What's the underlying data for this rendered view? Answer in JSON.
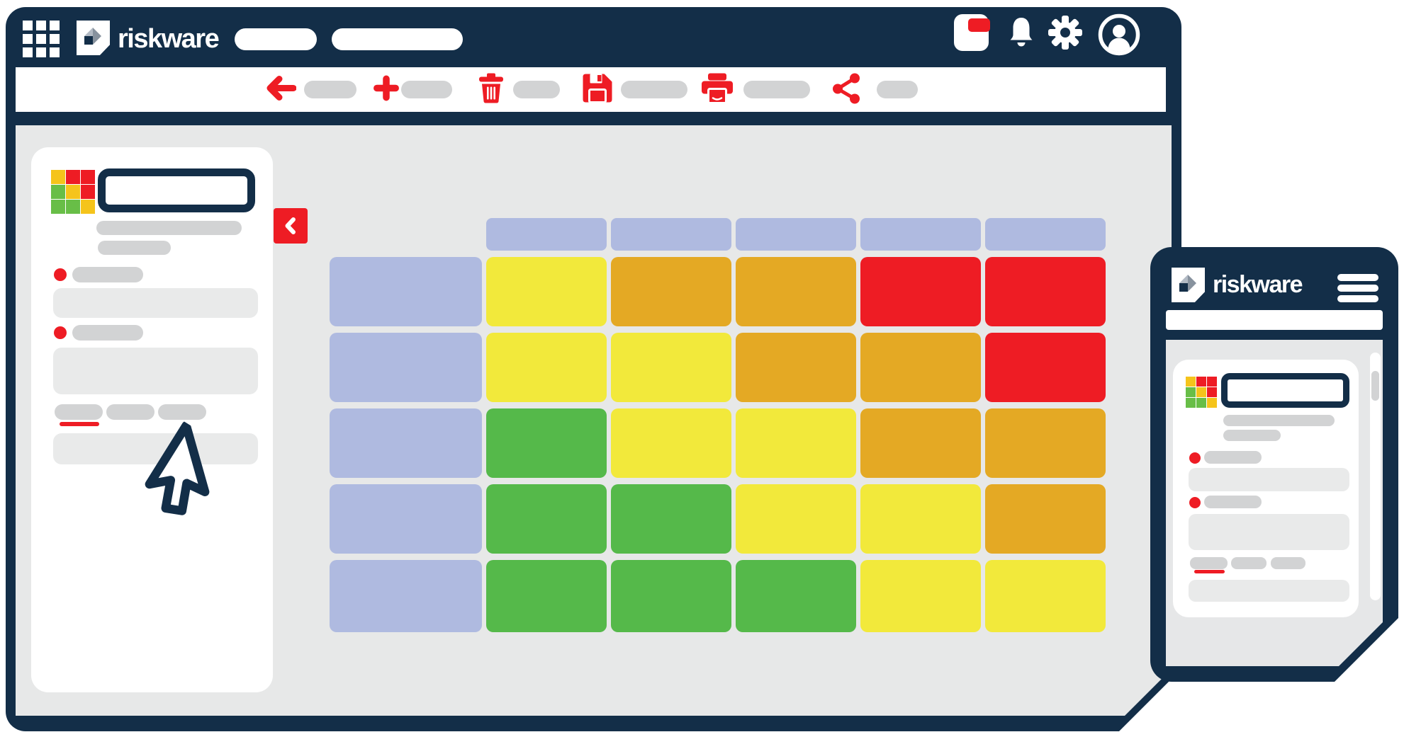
{
  "brand": {
    "name": "riskware"
  },
  "colors": {
    "navy": "#132E48",
    "red": "#EE1C24",
    "content_bg": "#E7E8E8",
    "phone_screen_bg": "#E6E7E8",
    "pill_gray": "#D2D3D4",
    "box_gray": "#E9EAEA",
    "lavender": "#AFBAE0"
  },
  "topbar": {
    "nav_placeholders": 2,
    "icons": [
      "app-grid",
      "notification-card",
      "bell",
      "gear",
      "avatar"
    ],
    "notification_badge_color": "#EE1C24"
  },
  "toolbar": {
    "actions": [
      "back",
      "add",
      "delete",
      "save",
      "print",
      "share"
    ]
  },
  "sidebar": {
    "required_fields": 2,
    "tabs": {
      "count": 3,
      "active_index": 0,
      "active_underline_color": "#EE1C24"
    }
  },
  "logo_grid": {
    "colors": {
      "y": "#F5C41B",
      "r": "#EE1C24",
      "g": "#68BE47"
    },
    "rows": [
      [
        "y",
        "r",
        "r"
      ],
      [
        "g",
        "y",
        "r"
      ],
      [
        "g",
        "g",
        "y"
      ]
    ]
  },
  "risk_matrix": {
    "type": "heatmap",
    "header_cells": 5,
    "row_labels": 5,
    "cell_colors": {
      "yellow": "#F2E93B",
      "orange": "#E4A924",
      "green": "#55B94A",
      "red": "#EE1C24",
      "label": "#AFBAE0"
    },
    "rows": [
      [
        "yellow",
        "orange",
        "orange",
        "red",
        "red"
      ],
      [
        "yellow",
        "yellow",
        "orange",
        "orange",
        "red"
      ],
      [
        "green",
        "yellow",
        "yellow",
        "orange",
        "orange"
      ],
      [
        "green",
        "green",
        "yellow",
        "yellow",
        "orange"
      ],
      [
        "green",
        "green",
        "green",
        "yellow",
        "yellow"
      ]
    ]
  },
  "phone": {
    "brand": "riskware",
    "tabs": {
      "count": 3,
      "active_index": 0
    }
  }
}
